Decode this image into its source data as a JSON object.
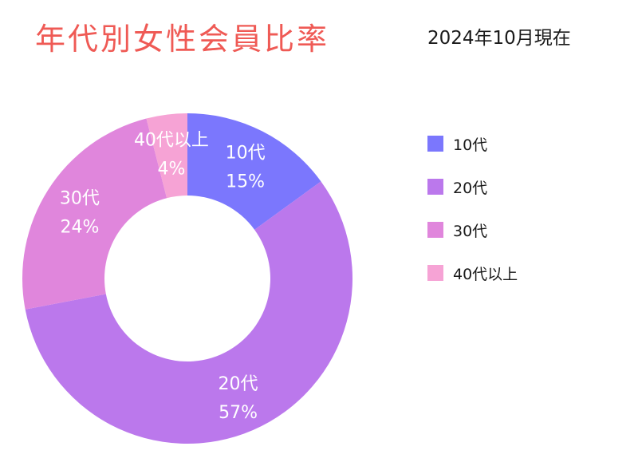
{
  "header": {
    "title": "年代別女性会員比率",
    "as_of": "2024年10月現在"
  },
  "chart_data": {
    "type": "pie",
    "variant": "donut",
    "title": "年代別女性会員比率",
    "subtitle": "2024年10月現在",
    "categories": [
      "10代",
      "20代",
      "30代",
      "40代以上"
    ],
    "values": [
      15,
      57,
      24,
      4
    ],
    "value_labels": [
      "15%",
      "57%",
      "24%",
      "4%"
    ],
    "unit": "%",
    "colors": [
      "#7b77fd",
      "#bb78ec",
      "#e086dc",
      "#f6a3d5"
    ],
    "label_color": "#ffffff",
    "legend_position": "right"
  },
  "legend": {
    "items": [
      {
        "label": "10代",
        "color": "#7b77fd"
      },
      {
        "label": "20代",
        "color": "#bb78ec"
      },
      {
        "label": "30代",
        "color": "#e086dc"
      },
      {
        "label": "40代以上",
        "color": "#f6a3d5"
      }
    ]
  }
}
